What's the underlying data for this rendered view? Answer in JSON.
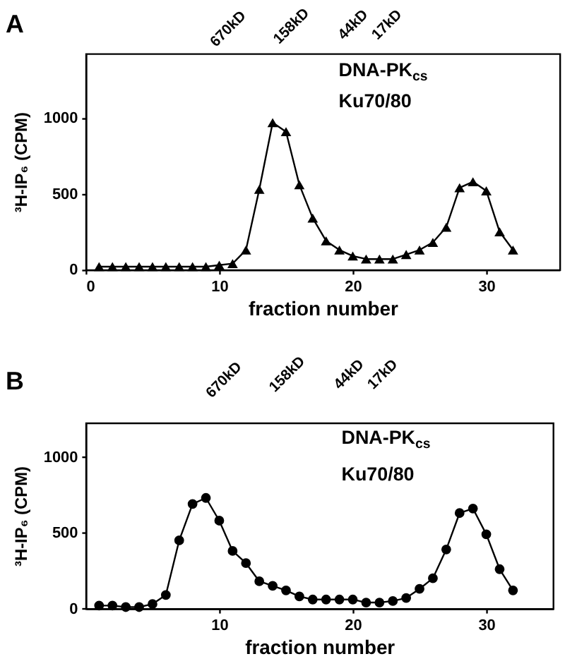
{
  "chart_data": [
    {
      "type": "line",
      "title": "A",
      "xlabel": "fraction number",
      "ylabel": "³H-IP₆ (CPM)",
      "x": [
        1,
        2,
        3,
        4,
        5,
        6,
        7,
        8,
        9,
        10,
        11,
        12,
        13,
        14,
        15,
        16,
        17,
        18,
        19,
        20,
        21,
        22,
        23,
        24,
        25,
        26,
        27,
        28,
        29,
        30,
        31,
        32
      ],
      "series": [
        {
          "color": "#000000",
          "values": [
            20,
            20,
            20,
            20,
            20,
            20,
            20,
            20,
            20,
            30,
            40,
            130,
            530,
            970,
            910,
            560,
            340,
            190,
            130,
            90,
            70,
            70,
            70,
            100,
            130,
            180,
            280,
            540,
            580,
            520,
            250,
            130
          ]
        }
      ],
      "xlim": [
        0,
        35.5
      ],
      "ylim": [
        0,
        1425
      ],
      "xticks": [
        0,
        10,
        20,
        30
      ],
      "yticks": [
        0,
        500,
        1000
      ],
      "grid": false,
      "marker": "triangle",
      "line_style": "solid",
      "annotations": [
        "670kD",
        "158kD",
        "44kD",
        "17kD",
        "DNA-PK$_{cs}$",
        "Ku70/80"
      ]
    },
    {
      "type": "line",
      "title": "B",
      "xlabel": "fraction number",
      "ylabel": "³H-IP₆ (CPM)",
      "x": [
        1,
        2,
        3,
        4,
        5,
        6,
        7,
        8,
        9,
        10,
        11,
        12,
        13,
        14,
        15,
        16,
        17,
        18,
        19,
        20,
        21,
        22,
        23,
        24,
        25,
        26,
        27,
        28,
        29,
        30,
        31,
        32
      ],
      "series": [
        {
          "color": "#000000",
          "values": [
            20,
            20,
            10,
            10,
            30,
            90,
            450,
            690,
            730,
            580,
            380,
            300,
            180,
            150,
            120,
            80,
            60,
            60,
            60,
            60,
            40,
            40,
            50,
            70,
            130,
            200,
            390,
            630,
            660,
            490,
            260,
            120
          ]
        }
      ],
      "xlim": [
        0,
        35
      ],
      "ylim": [
        0,
        1225
      ],
      "xticks": [
        10,
        20,
        30
      ],
      "yticks": [
        0,
        500,
        1000
      ],
      "grid": false,
      "marker": "circle",
      "line_style": "solid",
      "annotations": [
        "670kD",
        "158kD",
        "44kD",
        "17kD",
        "DNA-PK$_{cs}$",
        "Ku70/80"
      ]
    }
  ]
}
